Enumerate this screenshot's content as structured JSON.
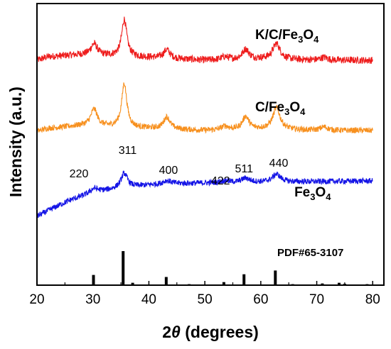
{
  "chart_data": {
    "type": "line",
    "xlabel_pre": "2",
    "xlabel_theta": "θ",
    "xlabel_post": " (degrees)",
    "ylabel": "Intensity (a.u.)",
    "xlim": [
      20,
      82
    ],
    "xticks": [
      "20",
      "30",
      "40",
      "50",
      "60",
      "70",
      "80"
    ],
    "y_tick_labels": false,
    "series": [
      {
        "name_parts": [
          "K/C/Fe",
          "3",
          "O",
          "4"
        ],
        "color": "#ee1c1c",
        "offset": 220,
        "noise": 5,
        "baseline": [
          [
            20,
            0
          ],
          [
            22,
            5
          ],
          [
            28,
            8
          ],
          [
            40,
            4
          ],
          [
            50,
            0
          ],
          [
            60,
            2
          ],
          [
            70,
            0
          ],
          [
            80,
            0
          ]
        ],
        "peaks": [
          [
            30.2,
            16,
            0.7
          ],
          [
            35.6,
            52,
            0.55
          ],
          [
            43.2,
            12,
            0.7
          ],
          [
            53.6,
            4,
            0.8
          ],
          [
            57.3,
            14,
            0.7
          ],
          [
            62.8,
            22,
            0.8
          ],
          [
            71.3,
            4,
            0.8
          ]
        ]
      },
      {
        "name_parts": [
          "C/Fe",
          "3",
          "O",
          "4"
        ],
        "color": "#f7901e",
        "offset": 120,
        "noise": 4,
        "baseline": [
          [
            20,
            0
          ],
          [
            22,
            4
          ],
          [
            28,
            8
          ],
          [
            40,
            4
          ],
          [
            50,
            1
          ],
          [
            60,
            3
          ],
          [
            70,
            1
          ],
          [
            80,
            1
          ]
        ],
        "peaks": [
          [
            30.2,
            24,
            0.7
          ],
          [
            35.6,
            62,
            0.55
          ],
          [
            43.2,
            17,
            0.7
          ],
          [
            53.6,
            5,
            0.8
          ],
          [
            57.3,
            18,
            0.7
          ],
          [
            62.8,
            30,
            0.8
          ],
          [
            71.3,
            5,
            0.8
          ]
        ]
      },
      {
        "name_parts": [
          "Fe",
          "3",
          "O",
          "4"
        ],
        "color": "#1414e6",
        "offset": 0,
        "noise": 4,
        "baseline": [
          [
            20,
            0
          ],
          [
            23,
            12
          ],
          [
            26,
            23
          ],
          [
            28,
            28
          ],
          [
            30,
            33
          ],
          [
            35,
            40
          ],
          [
            40,
            44
          ],
          [
            45,
            46
          ],
          [
            50,
            47
          ],
          [
            60,
            48
          ],
          [
            70,
            49
          ],
          [
            80,
            50
          ]
        ],
        "peaks": [
          [
            30.2,
            6,
            0.9
          ],
          [
            35.6,
            20,
            0.7
          ],
          [
            43.2,
            5,
            0.9
          ],
          [
            53.6,
            3,
            0.9
          ],
          [
            57.3,
            6,
            0.9
          ],
          [
            62.8,
            11,
            0.9
          ]
        ]
      }
    ],
    "series_labels_x": [
      59,
      59,
      66
    ],
    "series_labels_y": [
      250,
      148,
      28
    ],
    "reference": {
      "name": "PDF#65-3107",
      "lines": [
        [
          30.1,
          30
        ],
        [
          35.4,
          100
        ],
        [
          37.1,
          7
        ],
        [
          43.1,
          24
        ],
        [
          47.2,
          3
        ],
        [
          53.4,
          9
        ],
        [
          57.0,
          32
        ],
        [
          62.6,
          43
        ],
        [
          65.7,
          3
        ],
        [
          71.0,
          5
        ],
        [
          74.0,
          7
        ],
        [
          75.0,
          4
        ],
        [
          79.0,
          3
        ]
      ]
    },
    "hkl_labels": [
      {
        "text": "220",
        "x": 27.5,
        "y": 55
      },
      {
        "text": "311",
        "x": 36.2,
        "y": 88
      },
      {
        "text": "400",
        "x": 43.5,
        "y": 60
      },
      {
        "text": "422",
        "x": 52.8,
        "y": 45
      },
      {
        "text": "511",
        "x": 57.0,
        "y": 62
      },
      {
        "text": "440",
        "x": 63.2,
        "y": 70
      }
    ]
  }
}
